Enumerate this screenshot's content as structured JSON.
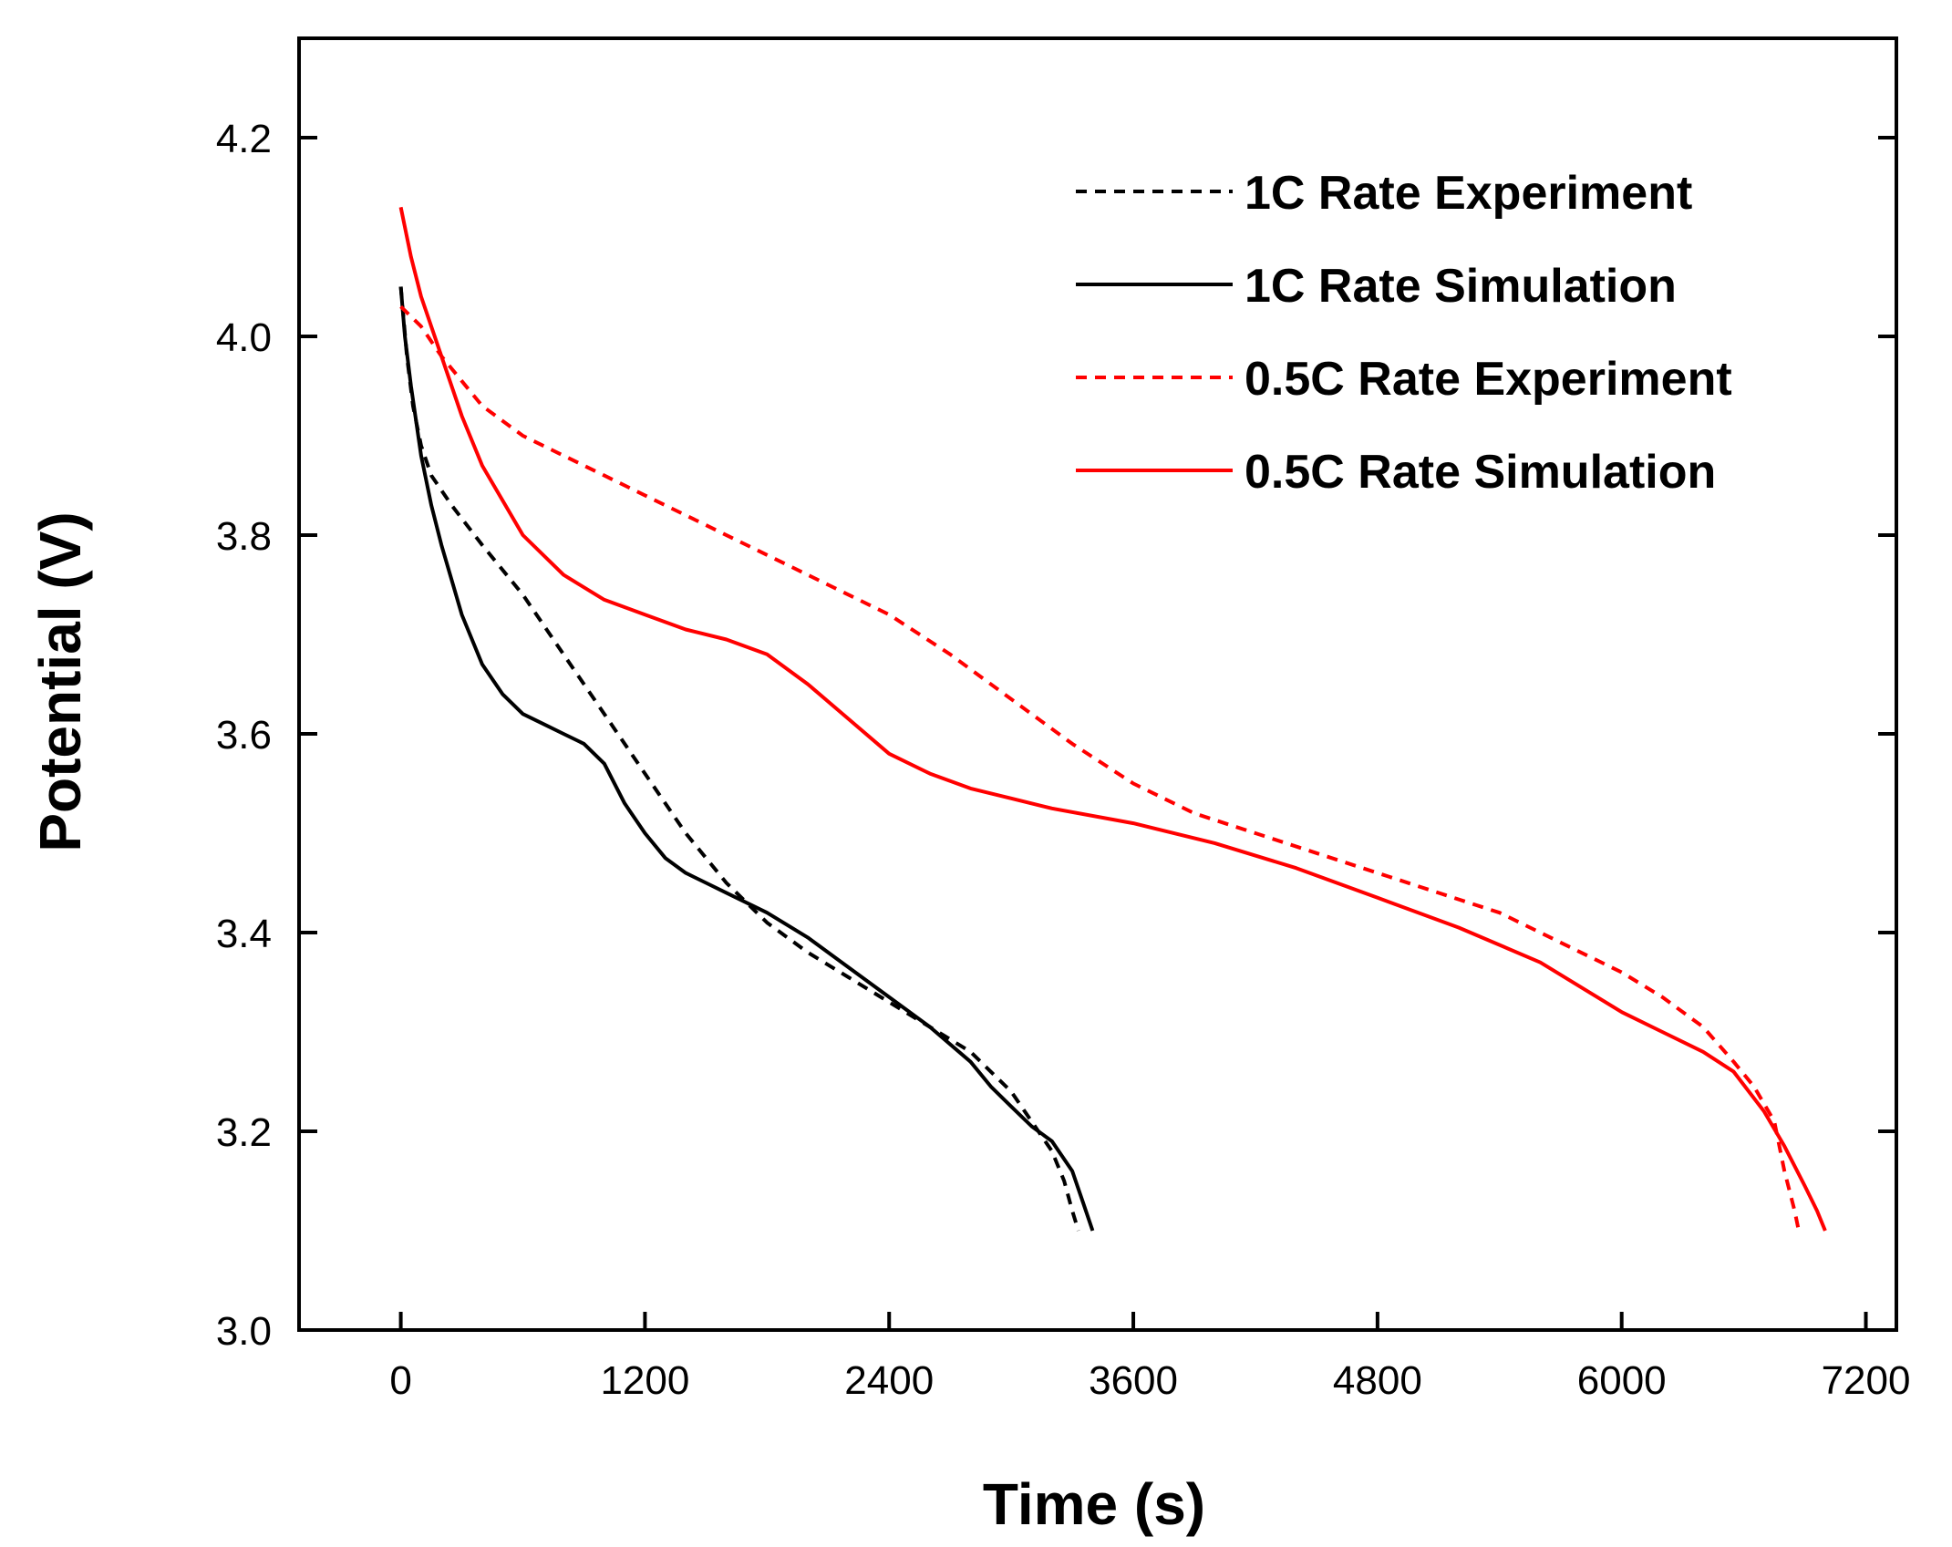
{
  "chart_data": {
    "type": "line",
    "title": "",
    "xlabel": "Time (s)",
    "ylabel": "Potential (V)",
    "xlim": [
      -500,
      7350
    ],
    "ylim": [
      3.0,
      4.3
    ],
    "xticks": [
      0,
      1200,
      2400,
      3600,
      4800,
      6000,
      7200
    ],
    "xtick_labels": [
      "0",
      "1200",
      "2400",
      "3600",
      "4800",
      "6000",
      "7200"
    ],
    "yticks": [
      3.0,
      3.2,
      3.4,
      3.6,
      3.8,
      4.0,
      4.2
    ],
    "ytick_labels": [
      "3.0",
      "3.2",
      "3.4",
      "3.6",
      "3.8",
      "4.0",
      "4.2"
    ],
    "grid": false,
    "legend_position": "top-right",
    "series": [
      {
        "name": "1C Rate Experiment",
        "color": "#000000",
        "style": "dashed",
        "x": [
          0,
          30,
          60,
          100,
          150,
          250,
          400,
          600,
          800,
          1000,
          1200,
          1400,
          1600,
          1800,
          2000,
          2200,
          2400,
          2600,
          2800,
          3000,
          3100,
          3200,
          3260,
          3300,
          3330
        ],
        "y": [
          4.05,
          3.98,
          3.93,
          3.89,
          3.86,
          3.83,
          3.79,
          3.74,
          3.68,
          3.62,
          3.56,
          3.5,
          3.45,
          3.41,
          3.38,
          3.355,
          3.33,
          3.305,
          3.28,
          3.24,
          3.21,
          3.18,
          3.15,
          3.12,
          3.1
        ]
      },
      {
        "name": "1C Rate Simulation",
        "color": "#000000",
        "style": "solid",
        "x": [
          0,
          20,
          50,
          100,
          150,
          200,
          300,
          400,
          500,
          600,
          700,
          800,
          900,
          1000,
          1100,
          1200,
          1300,
          1400,
          1500,
          1600,
          1800,
          2000,
          2200,
          2400,
          2600,
          2800,
          2900,
          3000,
          3100,
          3200,
          3300,
          3350,
          3400
        ],
        "y": [
          4.05,
          4.0,
          3.95,
          3.88,
          3.83,
          3.79,
          3.72,
          3.67,
          3.64,
          3.62,
          3.61,
          3.6,
          3.59,
          3.57,
          3.53,
          3.5,
          3.475,
          3.46,
          3.45,
          3.44,
          3.42,
          3.395,
          3.365,
          3.335,
          3.305,
          3.27,
          3.245,
          3.225,
          3.205,
          3.19,
          3.16,
          3.13,
          3.1
        ]
      },
      {
        "name": "0.5C Rate Experiment",
        "color": "#ff0000",
        "style": "dashed",
        "x": [
          0,
          100,
          200,
          400,
          600,
          800,
          1000,
          1200,
          1500,
          1800,
          2100,
          2400,
          2700,
          3000,
          3300,
          3600,
          3900,
          4200,
          4500,
          4800,
          5100,
          5400,
          5700,
          6000,
          6200,
          6400,
          6550,
          6650,
          6750,
          6800,
          6850,
          6870
        ],
        "y": [
          4.03,
          4.01,
          3.98,
          3.93,
          3.9,
          3.88,
          3.86,
          3.84,
          3.81,
          3.78,
          3.75,
          3.72,
          3.68,
          3.635,
          3.59,
          3.55,
          3.52,
          3.5,
          3.48,
          3.46,
          3.44,
          3.42,
          3.39,
          3.36,
          3.335,
          3.305,
          3.27,
          3.245,
          3.21,
          3.16,
          3.12,
          3.1
        ]
      },
      {
        "name": "0.5C Rate Simulation",
        "color": "#ff0000",
        "style": "solid",
        "x": [
          0,
          50,
          100,
          200,
          300,
          400,
          600,
          800,
          1000,
          1200,
          1400,
          1600,
          1800,
          2000,
          2200,
          2400,
          2600,
          2800,
          3000,
          3200,
          3600,
          4000,
          4400,
          4800,
          5200,
          5600,
          6000,
          6200,
          6400,
          6550,
          6700,
          6800,
          6900,
          6960,
          7000
        ],
        "y": [
          4.13,
          4.08,
          4.04,
          3.98,
          3.92,
          3.87,
          3.8,
          3.76,
          3.735,
          3.72,
          3.705,
          3.695,
          3.68,
          3.65,
          3.615,
          3.58,
          3.56,
          3.545,
          3.535,
          3.525,
          3.51,
          3.49,
          3.465,
          3.435,
          3.405,
          3.37,
          3.32,
          3.3,
          3.28,
          3.26,
          3.22,
          3.185,
          3.145,
          3.12,
          3.1
        ]
      }
    ]
  }
}
